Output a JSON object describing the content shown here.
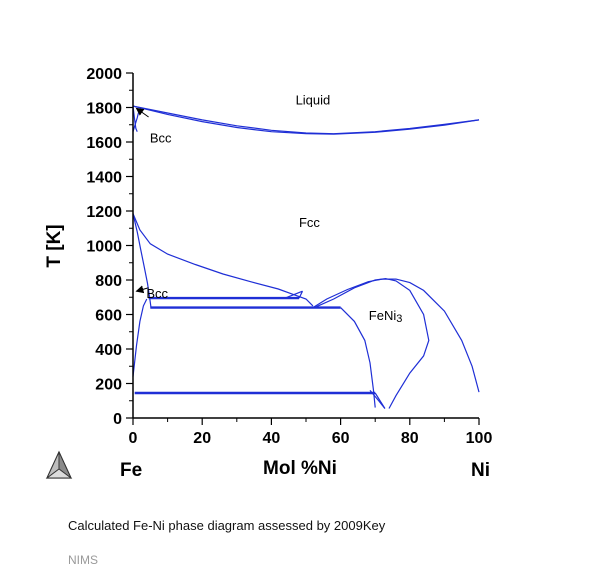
{
  "chart_data": {
    "type": "line",
    "title": "",
    "xlabel": "Mol %Ni",
    "ylabel": "T [K]",
    "xlim": [
      0,
      100
    ],
    "ylim": [
      0,
      2000
    ],
    "x_ticks": [
      0,
      20,
      40,
      60,
      80,
      100
    ],
    "y_ticks": [
      0,
      200,
      400,
      600,
      800,
      1000,
      1200,
      1400,
      1600,
      1800,
      2000
    ],
    "corner_labels": {
      "left": "Fe",
      "right": "Ni"
    },
    "line_color": "#1f2fd6",
    "regions": [
      {
        "label": "Liquid",
        "x": 52,
        "y": 1840
      },
      {
        "label": "Bcc",
        "x": 8,
        "y": 1620
      },
      {
        "label": "Fcc",
        "x": 51,
        "y": 1130
      },
      {
        "label": "Bcc",
        "x": 7,
        "y": 720
      },
      {
        "label": "FeNi3",
        "x": 73,
        "y": 590
      }
    ],
    "arrows": [
      {
        "from": [
          4.5,
          1745
        ],
        "to": [
          1.0,
          1795
        ]
      },
      {
        "from": [
          4.5,
          755
        ],
        "to": [
          1.0,
          735
        ]
      }
    ],
    "series": [
      {
        "points": [
          [
            0,
            1808
          ],
          [
            10,
            1768
          ],
          [
            20,
            1728
          ],
          [
            30,
            1694
          ],
          [
            40,
            1668
          ],
          [
            50,
            1652
          ],
          [
            58,
            1648
          ],
          [
            70,
            1660
          ],
          [
            80,
            1678
          ],
          [
            90,
            1702
          ],
          [
            100,
            1728
          ]
        ]
      },
      {
        "points": [
          [
            0,
            1808
          ],
          [
            10,
            1760
          ],
          [
            20,
            1718
          ],
          [
            30,
            1684
          ],
          [
            40,
            1660
          ],
          [
            50,
            1648
          ],
          [
            58,
            1646
          ],
          [
            70,
            1656
          ],
          [
            80,
            1674
          ],
          [
            90,
            1698
          ],
          [
            100,
            1728
          ]
        ]
      },
      {
        "points": [
          [
            0,
            1808
          ],
          [
            0.4,
            1740
          ],
          [
            0.8,
            1680
          ],
          [
            1.2,
            1660
          ]
        ]
      },
      {
        "points": [
          [
            0,
            1660
          ],
          [
            0.6,
            1700
          ],
          [
            1.2,
            1740
          ],
          [
            1.6,
            1770
          ]
        ]
      },
      {
        "points": [
          [
            0,
            1185
          ],
          [
            1.2,
            1080
          ],
          [
            2.2,
            980
          ],
          [
            3.2,
            880
          ],
          [
            4.2,
            780
          ],
          [
            4.8,
            700
          ],
          [
            5.2,
            640
          ]
        ]
      },
      {
        "points": [
          [
            0,
            1185
          ],
          [
            2,
            1090
          ],
          [
            5,
            1010
          ],
          [
            10,
            950
          ],
          [
            18,
            890
          ],
          [
            26,
            835
          ],
          [
            34,
            790
          ],
          [
            42,
            748
          ],
          [
            46,
            718
          ],
          [
            50,
            690
          ],
          [
            52,
            650
          ]
        ]
      },
      {
        "points": [
          [
            0,
            240
          ],
          [
            1,
            420
          ],
          [
            2,
            560
          ],
          [
            3,
            650
          ],
          [
            4,
            690
          ]
        ]
      },
      {
        "points": [
          [
            4.5,
            695
          ],
          [
            48,
            695
          ]
        ]
      },
      {
        "points": [
          [
            48,
            695
          ],
          [
            49,
            735
          ]
        ]
      },
      {
        "points": [
          [
            49,
            735
          ],
          [
            44,
            695
          ]
        ]
      },
      {
        "points": [
          [
            5,
            640
          ],
          [
            60,
            640
          ]
        ]
      },
      {
        "points": [
          [
            52,
            640
          ],
          [
            56,
            690
          ],
          [
            62,
            745
          ],
          [
            68,
            790
          ],
          [
            72,
            805
          ],
          [
            76,
            805
          ],
          [
            80,
            785
          ],
          [
            84,
            740
          ],
          [
            90,
            620
          ],
          [
            95,
            450
          ],
          [
            98,
            300
          ],
          [
            100,
            150
          ]
        ]
      },
      {
        "points": [
          [
            53,
            645
          ],
          [
            58,
            690
          ],
          [
            64,
            755
          ],
          [
            70,
            800
          ],
          [
            73,
            808
          ],
          [
            76,
            795
          ],
          [
            80,
            740
          ],
          [
            84,
            600
          ],
          [
            85.5,
            450
          ],
          [
            84,
            360
          ],
          [
            80,
            260
          ],
          [
            76,
            130
          ],
          [
            74,
            55
          ]
        ]
      },
      {
        "points": [
          [
            60,
            640
          ],
          [
            64,
            560
          ],
          [
            67,
            450
          ],
          [
            68.5,
            320
          ],
          [
            69.5,
            160
          ],
          [
            70,
            60
          ]
        ]
      },
      {
        "points": [
          [
            0.5,
            145
          ],
          [
            70,
            145
          ]
        ]
      },
      {
        "points": [
          [
            70,
            145
          ],
          [
            72.8,
            55
          ]
        ]
      },
      {
        "points": [
          [
            68.5,
            160
          ],
          [
            71,
            100
          ],
          [
            72.8,
            55
          ]
        ]
      }
    ]
  },
  "caption": "Calculated Fe-Ni phase diagram assessed by 2009Key",
  "footer": "NIMS",
  "logo": "thermo-calc-triangle-logo"
}
